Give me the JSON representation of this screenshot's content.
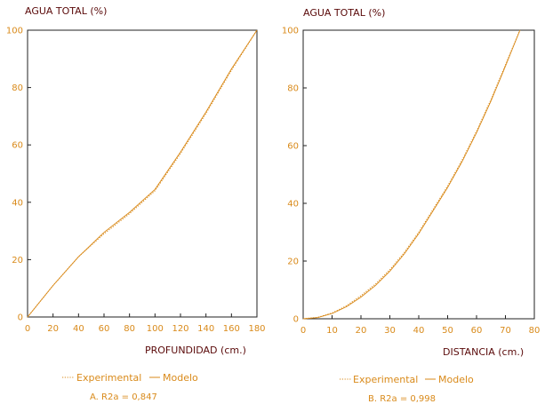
{
  "chart_data": [
    {
      "type": "line",
      "ylabel": "AGUA TOTAL (%)",
      "xlabel": "PROFUNDIDAD (cm.)",
      "xlim": [
        0,
        180
      ],
      "ylim": [
        0,
        100
      ],
      "xticks": [
        "0",
        "20",
        "40",
        "60",
        "80",
        "100",
        "120",
        "140",
        "160",
        "180"
      ],
      "yticks": [
        "0",
        "20",
        "40",
        "60",
        "80",
        "100"
      ],
      "series": [
        {
          "name": "Experimental",
          "style": "dotted",
          "color": "#d98a1a",
          "x": [
            0,
            20,
            40,
            60,
            80,
            100,
            120,
            140,
            160,
            180
          ],
          "y": [
            0,
            11,
            21,
            29,
            36,
            44,
            57,
            71,
            86,
            100
          ]
        },
        {
          "name": "Modelo",
          "style": "solid",
          "color": "#d98a1a",
          "x": [
            0,
            20,
            40,
            60,
            80,
            100,
            120,
            140,
            160,
            180
          ],
          "y": [
            0,
            11,
            21,
            29.5,
            36.5,
            44.5,
            57.5,
            71.5,
            86.5,
            100
          ]
        }
      ],
      "legend": [
        "Experimental",
        "Modelo"
      ],
      "stat_label": "A.   R2a = 0,847"
    },
    {
      "type": "line",
      "ylabel": "AGUA TOTAL (%)",
      "xlabel": "DISTANCIA (cm.)",
      "xlim": [
        0,
        80
      ],
      "ylim": [
        0,
        100
      ],
      "xticks": [
        "0",
        "10",
        "20",
        "30",
        "40",
        "50",
        "60",
        "70",
        "80"
      ],
      "yticks": [
        "0",
        "20",
        "40",
        "60",
        "80",
        "100"
      ],
      "series": [
        {
          "name": "Experimental",
          "style": "dotted",
          "color": "#d98a1a",
          "x": [
            0,
            5,
            10,
            15,
            20,
            25,
            30,
            35,
            40,
            45,
            50,
            55,
            60,
            65,
            70,
            75
          ],
          "y": [
            0,
            0.5,
            2,
            4.5,
            8,
            12,
            17,
            23,
            30,
            38,
            46,
            55,
            65,
            76,
            88,
            100
          ]
        },
        {
          "name": "Modelo",
          "style": "solid",
          "color": "#d98a1a",
          "x": [
            0,
            5,
            10,
            15,
            20,
            25,
            30,
            35,
            40,
            45,
            50,
            55,
            60,
            65,
            70,
            75
          ],
          "y": [
            0,
            0.4,
            1.8,
            4.2,
            7.5,
            11.5,
            16.5,
            22.5,
            29.5,
            37.5,
            45.5,
            54.5,
            64.5,
            75.5,
            87.5,
            100
          ]
        }
      ],
      "legend": [
        "Experimental",
        "Modelo"
      ],
      "stat_label": "B.   R2a = 0,998"
    }
  ]
}
